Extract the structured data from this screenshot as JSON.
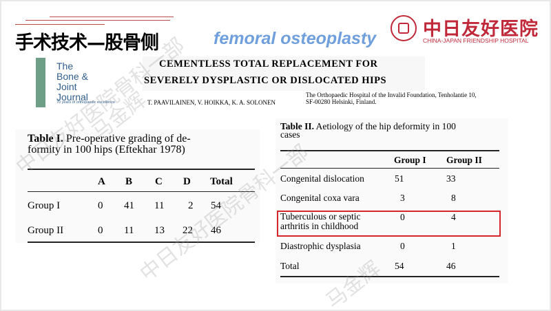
{
  "header": {
    "title_cn": "手术技术—股骨侧",
    "title_en": "femoral osteoplasty"
  },
  "logo": {
    "name_cn": "中日友好医院",
    "name_en": "CHINA-JAPAN FRIENDSHIP HOSPITAL"
  },
  "journal": {
    "line1": "The",
    "line2": "Bone & Joint",
    "line3": "Journal",
    "tagline": "70 years of orthopaedic excellence"
  },
  "paper": {
    "title_line1": "CEMENTLESS TOTAL REPLACEMENT FOR",
    "title_line2": "SEVERELY DYSPLASTIC OR DISLOCATED HIPS",
    "authors": "T. PAAVILAINEN,   V. HOIKKA,   K. A. SOLONEN",
    "affiliation_line1": "The Orthopaedic Hospital of the Invalid Foundation, Tenholantie 10,",
    "affiliation_line2": "SF-00280 Helsinki, Finland."
  },
  "table1": {
    "caption_label": "Table I.",
    "caption_line1": " Pre-operative grading of de-",
    "caption_line2": "formity in 100 hips (Eftekhar 1978)",
    "headers": [
      "",
      "A",
      "B",
      "C",
      "D",
      "Total"
    ],
    "rows": [
      [
        "Group I",
        "0",
        "41",
        "11",
        "2",
        "54"
      ],
      [
        "Group II",
        "0",
        "11",
        "13",
        "22",
        "46"
      ]
    ]
  },
  "table2": {
    "caption_label": "Table II.",
    "caption_line1": " Aetiology of the hip deformity in 100",
    "caption_line2": "cases",
    "headers": [
      "",
      "Group I",
      "Group II"
    ],
    "rows": [
      [
        "Congenital dislocation",
        "",
        "51",
        "33"
      ],
      [
        "Congenital coxa vara",
        "",
        "3",
        "8"
      ],
      [
        "Tuberculous or septic",
        "arthritis in childhood",
        "0",
        "4"
      ],
      [
        "Diastrophic dysplasia",
        "",
        "0",
        "1"
      ],
      [
        "Total",
        "",
        "54",
        "46"
      ]
    ],
    "highlight_color": "#d6262b"
  },
  "watermark": {
    "line1": "中日友好医院骨科一部",
    "line2": "马金辉"
  }
}
